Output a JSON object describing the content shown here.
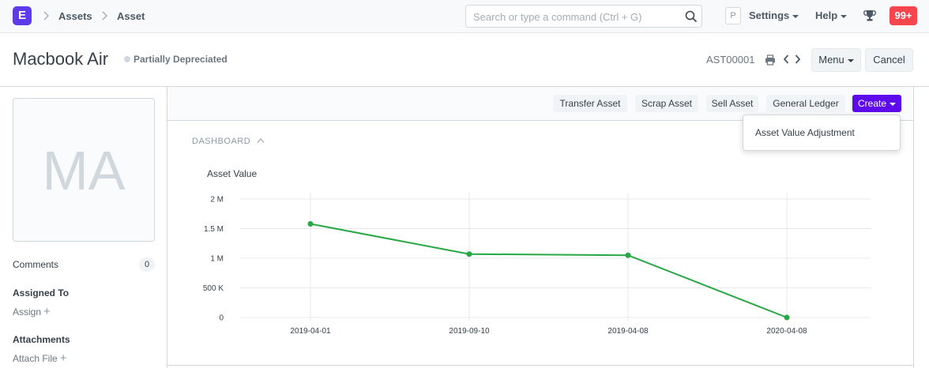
{
  "navbar": {
    "logo_letter": "E",
    "breadcrumbs": [
      "Assets",
      "Asset"
    ],
    "search_placeholder": "Search or type a command (Ctrl + G)",
    "profile_initial": "P",
    "settings_label": "Settings",
    "help_label": "Help",
    "notifications_count": "99+"
  },
  "page": {
    "title": "Macbook Air",
    "status": "Partially Depreciated",
    "doc_id": "AST00001",
    "menu_label": "Menu",
    "cancel_label": "Cancel"
  },
  "sidebar": {
    "avatar_initials": "MA",
    "comments_label": "Comments",
    "comments_count": "0",
    "assigned_to_label": "Assigned To",
    "assign_label": "Assign",
    "attachments_label": "Attachments",
    "attach_file_label": "Attach File"
  },
  "toolbar": {
    "buttons": [
      "Transfer Asset",
      "Scrap Asset",
      "Sell Asset",
      "General Ledger"
    ],
    "create_label": "Create"
  },
  "dropdown": {
    "items": [
      "Asset Value Adjustment"
    ]
  },
  "dashboard": {
    "label": "DASHBOARD"
  },
  "chart_data": {
    "type": "line",
    "title": "Asset Value",
    "categories": [
      "2019-04-01",
      "2019-09-10",
      "2019-04-08",
      "2020-04-08"
    ],
    "series": [
      {
        "values": [
          1580000,
          1070000,
          1050000,
          0
        ],
        "color": "#28a745"
      }
    ],
    "y_ticks": [
      {
        "value": 0,
        "label": "0"
      },
      {
        "value": 500000,
        "label": "500 K"
      },
      {
        "value": 1000000,
        "label": "1 M"
      },
      {
        "value": 1500000,
        "label": "1.5 M"
      },
      {
        "value": 2000000,
        "label": "2 M"
      }
    ],
    "ylim": [
      0,
      2000000
    ],
    "grid": true
  }
}
